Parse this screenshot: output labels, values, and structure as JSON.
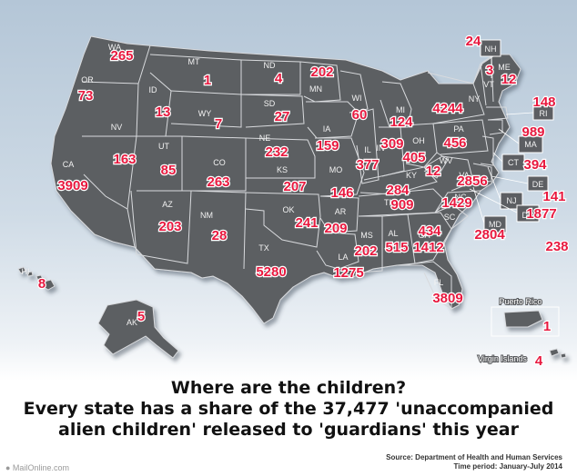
{
  "headline": {
    "line1": "Where are the children?",
    "line2": "Every state has a share of the 37,477 'unaccompanied",
    "line3": "alien children' released to 'guardians' this year"
  },
  "source": {
    "line1": "Source: Department of Health and Human Services",
    "line2": "Time period: January-July 2014"
  },
  "credit": "● MailOnline.com",
  "territories": {
    "pr": {
      "label": "Puerto Rico",
      "value": "1"
    },
    "vi": {
      "label": "Virgin Islands",
      "value": "4"
    }
  },
  "colors": {
    "land": "#5c5e62",
    "border": "#d8dadd",
    "value": "#e8193f",
    "ocean": "#b4c6d7"
  },
  "states": {
    "WA": {
      "abbr": "WA",
      "value": "265"
    },
    "OR": {
      "abbr": "OR",
      "value": "73"
    },
    "CA": {
      "abbr": "CA",
      "value": "3909"
    },
    "ID": {
      "abbr": "ID",
      "value": "13"
    },
    "NV": {
      "abbr": "NV",
      "value": "163"
    },
    "MT": {
      "abbr": "MT",
      "value": "1"
    },
    "WY": {
      "abbr": "WY",
      "value": "7"
    },
    "UT": {
      "abbr": "UT",
      "value": "85"
    },
    "CO": {
      "abbr": "CO",
      "value": "263"
    },
    "AZ": {
      "abbr": "AZ",
      "value": "203"
    },
    "NM": {
      "abbr": "NM",
      "value": "28"
    },
    "ND": {
      "abbr": "ND",
      "value": "4"
    },
    "SD": {
      "abbr": "SD",
      "value": "27"
    },
    "NE": {
      "abbr": "NE",
      "value": "232"
    },
    "KS": {
      "abbr": "KS",
      "value": "207"
    },
    "OK": {
      "abbr": "OK",
      "value": "241"
    },
    "TX": {
      "abbr": "TX",
      "value": "5280"
    },
    "MN": {
      "abbr": "MN",
      "value": "202"
    },
    "IA": {
      "abbr": "IA",
      "value": "159"
    },
    "MO": {
      "abbr": "MO",
      "value": "146"
    },
    "AR": {
      "abbr": "AR",
      "value": "209"
    },
    "LA": {
      "abbr": "LA",
      "value": "1275"
    },
    "WI": {
      "abbr": "WI",
      "value": "60"
    },
    "IL": {
      "abbr": "IL",
      "value": "377"
    },
    "MI": {
      "abbr": "MI",
      "value": "124"
    },
    "IN": {
      "abbr": "IN",
      "value": "309"
    },
    "OH": {
      "abbr": "OH",
      "value": "405"
    },
    "KY": {
      "abbr": "KY",
      "value": "284"
    },
    "TN": {
      "abbr": "TN",
      "value": "909"
    },
    "MS": {
      "abbr": "MS",
      "value": "202"
    },
    "AL": {
      "abbr": "AL",
      "value": "515"
    },
    "GA": {
      "abbr": "GA",
      "value": "1412"
    },
    "FL": {
      "abbr": "FL",
      "value": "3809"
    },
    "SC": {
      "abbr": "SC",
      "value": "434"
    },
    "NC": {
      "abbr": "NC",
      "value": "1429"
    },
    "VA": {
      "abbr": "VA",
      "value": "2856"
    },
    "WV": {
      "abbr": "WV",
      "value": "12"
    },
    "PA": {
      "abbr": "PA",
      "value": "456"
    },
    "NY": {
      "abbr": "NY",
      "value": "4244"
    },
    "VT": {
      "abbr": "VT",
      "value": "3"
    },
    "NH": {
      "abbr": "NH",
      "value": "24"
    },
    "ME": {
      "abbr": "ME",
      "value": "12"
    },
    "MA": {
      "abbr": "MA",
      "value": "989"
    },
    "RI": {
      "abbr": "RI",
      "value": "148"
    },
    "CT": {
      "abbr": "CT",
      "value": "394"
    },
    "NJ": {
      "abbr": "NJ",
      "value": "1877"
    },
    "DE": {
      "abbr": "DE",
      "value": "141"
    },
    "MD": {
      "abbr": "MD",
      "value": "2804"
    },
    "DC": {
      "abbr": "DC",
      "value": "238"
    },
    "AK": {
      "abbr": "AK",
      "value": "5"
    },
    "HI": {
      "abbr": "HI",
      "value": "8"
    }
  }
}
